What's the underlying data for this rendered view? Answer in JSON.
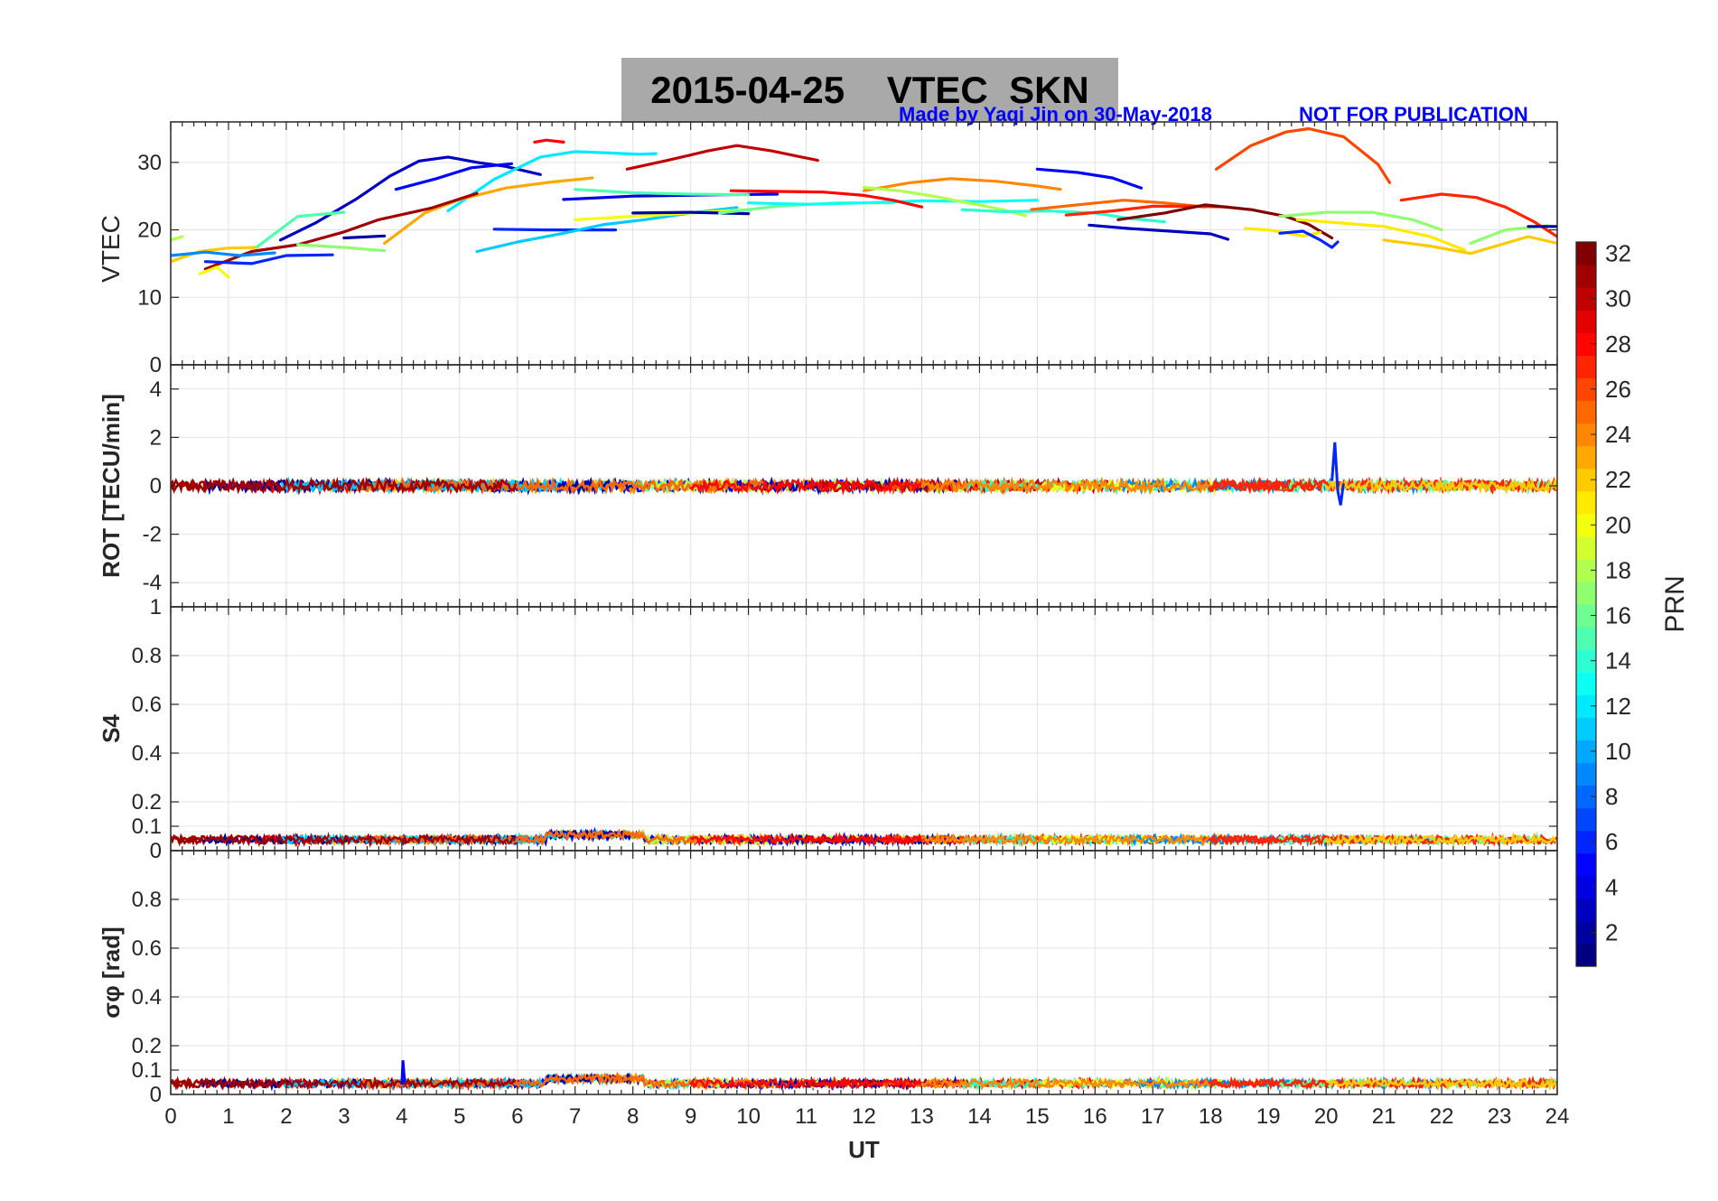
{
  "header": {
    "title": "2015-04-25    VTEC  SKN",
    "credit": "Made by Yaqi Jin on 30-May-2018",
    "notice": "NOT FOR PUBLICATION",
    "title_bg": "#a9a9a9",
    "note_color": "#0000ff"
  },
  "chart_data": [
    {
      "id": "vtec",
      "type": "line",
      "ylabel": "VTEC",
      "ylim": [
        0,
        36
      ],
      "yticks": [
        0,
        10,
        20,
        30
      ],
      "ytick_labels": [
        "0",
        "10",
        "20",
        "30"
      ],
      "grid": true,
      "series": [
        {
          "prn": 3,
          "points": [
            [
              1.9,
              18.5
            ],
            [
              2.5,
              21
            ],
            [
              3.2,
              24.5
            ],
            [
              3.8,
              28
            ],
            [
              4.3,
              30.2
            ],
            [
              4.8,
              30.8
            ],
            [
              5.3,
              30
            ],
            [
              5.8,
              29.4
            ],
            [
              6.4,
              28.2
            ]
          ]
        },
        {
          "prn": 5,
          "points": [
            [
              3.9,
              26
            ],
            [
              4.6,
              27.6
            ],
            [
              5.2,
              29.2
            ],
            [
              5.9,
              29.8
            ]
          ]
        },
        {
          "prn": 12,
          "points": [
            [
              4.8,
              22.8
            ],
            [
              5.6,
              27.5
            ],
            [
              6.4,
              30.8
            ],
            [
              7,
              31.6
            ],
            [
              7.6,
              31.4
            ],
            [
              8.1,
              31.2
            ],
            [
              8.4,
              31.3
            ]
          ]
        },
        {
          "prn": 23,
          "points": [
            [
              3.7,
              18
            ],
            [
              4.4,
              22.5
            ],
            [
              5,
              24.5
            ],
            [
              5.8,
              26.2
            ],
            [
              6.6,
              27.1
            ],
            [
              7.3,
              27.7
            ]
          ]
        },
        {
          "prn": 31,
          "points": [
            [
              0.6,
              14.2
            ],
            [
              1.4,
              16.8
            ],
            [
              2.2,
              17.8
            ],
            [
              3,
              19.7
            ],
            [
              3.6,
              21.5
            ],
            [
              4.5,
              23.2
            ],
            [
              5.3,
              25.4
            ]
          ]
        },
        {
          "prn": 28,
          "points": [
            [
              6.3,
              33
            ],
            [
              6.5,
              33.3
            ],
            [
              6.8,
              33
            ]
          ]
        },
        {
          "prn": 30,
          "points": [
            [
              7.9,
              29
            ],
            [
              8.6,
              30.3
            ],
            [
              9.3,
              31.7
            ],
            [
              9.8,
              32.5
            ],
            [
              10.4,
              31.7
            ],
            [
              11.2,
              30.3
            ]
          ]
        },
        {
          "prn": 6,
          "points": [
            [
              5.6,
              20.1
            ],
            [
              6.5,
              20
            ],
            [
              7.2,
              20
            ],
            [
              7.7,
              20
            ]
          ]
        },
        {
          "prn": 11,
          "points": [
            [
              5.3,
              16.8
            ],
            [
              6,
              18.2
            ],
            [
              6.8,
              19.5
            ],
            [
              7.5,
              20.8
            ],
            [
              8.2,
              21.5
            ],
            [
              9,
              22.5
            ],
            [
              9.8,
              23.3
            ]
          ]
        },
        {
          "prn": 4,
          "points": [
            [
              6.8,
              24.5
            ],
            [
              8,
              25
            ],
            [
              9.5,
              25.2
            ],
            [
              10.5,
              25.3
            ]
          ]
        },
        {
          "prn": 20,
          "points": [
            [
              7,
              21.5
            ],
            [
              8,
              22
            ],
            [
              9,
              22.5
            ],
            [
              10,
              23
            ]
          ]
        },
        {
          "prn": 15,
          "points": [
            [
              7,
              26
            ],
            [
              8,
              25.5
            ],
            [
              9,
              25.3
            ],
            [
              10,
              25.2
            ]
          ]
        },
        {
          "prn": 2,
          "points": [
            [
              8,
              22.5
            ],
            [
              9,
              22.6
            ],
            [
              10,
              22.4
            ]
          ]
        },
        {
          "prn": 16,
          "points": [
            [
              9.5,
              22.5
            ],
            [
              10.5,
              23.5
            ],
            [
              11.5,
              24
            ],
            [
              12.5,
              24
            ]
          ]
        },
        {
          "prn": 13,
          "points": [
            [
              10,
              24
            ],
            [
              11,
              23.8
            ],
            [
              12,
              24
            ],
            [
              13,
              24.3
            ],
            [
              14,
              24.2
            ],
            [
              15,
              24.4
            ]
          ]
        },
        {
          "prn": 28,
          "points": [
            [
              9.7,
              25.8
            ],
            [
              10.5,
              25.7
            ],
            [
              11.3,
              25.6
            ],
            [
              12,
              25.1
            ],
            [
              12.5,
              24.4
            ],
            [
              13,
              23.4
            ]
          ]
        },
        {
          "prn": 24,
          "points": [
            [
              12,
              25.8
            ],
            [
              12.8,
              27
            ],
            [
              13.5,
              27.6
            ],
            [
              14.3,
              27.2
            ],
            [
              15,
              26.5
            ],
            [
              15.4,
              26
            ]
          ]
        },
        {
          "prn": 18,
          "points": [
            [
              12,
              26.3
            ],
            [
              12.6,
              25.8
            ],
            [
              13.2,
              25
            ],
            [
              13.8,
              24
            ],
            [
              14.4,
              23
            ],
            [
              14.8,
              22.1
            ]
          ]
        },
        {
          "prn": 14,
          "points": [
            [
              13.7,
              23
            ],
            [
              14.4,
              22.7
            ],
            [
              15.2,
              22.8
            ],
            [
              16,
              22.5
            ],
            [
              16.6,
              21.7
            ],
            [
              17.2,
              21.2
            ]
          ]
        },
        {
          "prn": 5,
          "points": [
            [
              15,
              29
            ],
            [
              15.7,
              28.5
            ],
            [
              16.3,
              27.7
            ],
            [
              16.8,
              26.2
            ]
          ]
        },
        {
          "prn": 25,
          "points": [
            [
              14.9,
              23
            ],
            [
              15.8,
              23.8
            ],
            [
              16.5,
              24.4
            ],
            [
              17.2,
              24
            ],
            [
              17.9,
              23.4
            ]
          ]
        },
        {
          "prn": 27,
          "points": [
            [
              15.5,
              22.2
            ],
            [
              16.3,
              22.8
            ],
            [
              17,
              23.5
            ],
            [
              17.7,
              23.5
            ],
            [
              18.3,
              23.4
            ]
          ]
        },
        {
          "prn": 32,
          "points": [
            [
              16.4,
              21.5
            ],
            [
              17.2,
              22.5
            ],
            [
              17.9,
              23.7
            ],
            [
              18.7,
              23
            ],
            [
              19.3,
              22
            ],
            [
              19.7,
              20.8
            ],
            [
              20.1,
              18.8
            ]
          ]
        },
        {
          "prn": 3,
          "points": [
            [
              15.9,
              20.7
            ],
            [
              16.6,
              20.2
            ],
            [
              17.3,
              19.8
            ],
            [
              18,
              19.4
            ],
            [
              18.3,
              18.6
            ]
          ]
        },
        {
          "prn": 26,
          "points": [
            [
              18.1,
              29
            ],
            [
              18.7,
              32.5
            ],
            [
              19.3,
              34.5
            ],
            [
              19.7,
              35
            ],
            [
              20.3,
              33.8
            ],
            [
              20.9,
              29.7
            ],
            [
              21.1,
              27
            ]
          ]
        },
        {
          "prn": 21,
          "points": [
            [
              18.6,
              20.2
            ],
            [
              19,
              20
            ],
            [
              19.6,
              19.1
            ],
            [
              19.9,
              19.6
            ]
          ]
        },
        {
          "prn": 6,
          "points": [
            [
              19.2,
              19.5
            ],
            [
              19.6,
              19.8
            ],
            [
              19.9,
              18.5
            ],
            [
              20.1,
              17.4
            ],
            [
              20.2,
              18.2
            ]
          ]
        },
        {
          "prn": 17,
          "points": [
            [
              19.2,
              22
            ],
            [
              20,
              22.6
            ],
            [
              20.8,
              22.6
            ],
            [
              21.5,
              21.5
            ],
            [
              22,
              20
            ]
          ]
        },
        {
          "prn": 21,
          "points": [
            [
              19.5,
              21.5
            ],
            [
              20.3,
              21
            ],
            [
              21,
              20.5
            ],
            [
              21.8,
              19
            ],
            [
              22.4,
              17
            ]
          ]
        },
        {
          "prn": 27,
          "points": [
            [
              21.3,
              24.4
            ],
            [
              22,
              25.3
            ],
            [
              22.6,
              24.8
            ],
            [
              23.1,
              23.4
            ],
            [
              23.6,
              21.2
            ],
            [
              24,
              19
            ]
          ]
        },
        {
          "prn": 22,
          "points": [
            [
              21,
              18.5
            ],
            [
              21.8,
              17.6
            ],
            [
              22.5,
              16.5
            ],
            [
              23.5,
              19
            ],
            [
              24,
              18
            ]
          ]
        },
        {
          "prn": 17,
          "points": [
            [
              22.5,
              18
            ],
            [
              23.1,
              20
            ],
            [
              23.8,
              20.6
            ],
            [
              24,
              20.5
            ]
          ]
        },
        {
          "prn": 2,
          "points": [
            [
              23.5,
              20.5
            ],
            [
              24,
              20.5
            ]
          ]
        },
        {
          "prn": 22,
          "points": [
            [
              0,
              15.3
            ],
            [
              0.5,
              16.8
            ],
            [
              1,
              17.3
            ],
            [
              1.5,
              17.4
            ]
          ]
        },
        {
          "prn": 9,
          "points": [
            [
              0,
              16.2
            ],
            [
              0.6,
              16.7
            ],
            [
              1.2,
              16.2
            ],
            [
              1.8,
              16.6
            ]
          ]
        },
        {
          "prn": 20,
          "points": [
            [
              0.5,
              13.5
            ],
            [
              0.8,
              14.5
            ],
            [
              1,
              13
            ]
          ]
        },
        {
          "prn": 6,
          "points": [
            [
              0.6,
              15.3
            ],
            [
              1.4,
              15
            ],
            [
              2,
              16.2
            ],
            [
              2.8,
              16.3
            ]
          ]
        },
        {
          "prn": 15,
          "points": [
            [
              1.5,
              17.5
            ],
            [
              2.2,
              22
            ],
            [
              2.6,
              22.3
            ],
            [
              3,
              22.6
            ]
          ]
        },
        {
          "prn": 17,
          "points": [
            [
              2.2,
              17.8
            ],
            [
              3,
              17.4
            ],
            [
              3.7,
              16.9
            ]
          ]
        },
        {
          "prn": 2,
          "points": [
            [
              3,
              18.8
            ],
            [
              3.7,
              19.1
            ]
          ]
        },
        {
          "prn": 18,
          "points": [
            [
              0,
              18.5
            ],
            [
              0.2,
              19
            ]
          ]
        }
      ]
    },
    {
      "id": "rot",
      "type": "line",
      "ylabel": "ROT [TECU/min]",
      "ylim": [
        -5,
        5
      ],
      "yticks": [
        -4,
        -2,
        0,
        2,
        4
      ],
      "ytick_labels": [
        "-4",
        "-2",
        "0",
        "2",
        "4"
      ],
      "grid": true,
      "series": [
        {
          "prn": 6,
          "points": [
            [
              20.1,
              0.2
            ],
            [
              20.15,
              1.8
            ],
            [
              20.2,
              -0.2
            ],
            [
              20.25,
              -0.8
            ],
            [
              20.3,
              0.1
            ]
          ]
        }
      ]
    },
    {
      "id": "s4",
      "type": "line",
      "ylabel": "S4",
      "ylim": [
        0,
        1
      ],
      "yticks": [
        0,
        0.1,
        0.2,
        0.4,
        0.6,
        0.8,
        1
      ],
      "ytick_labels": [
        "0",
        "0.1",
        "0.2",
        "0.4",
        "0.6",
        "0.8",
        "1"
      ],
      "grid": true,
      "series": []
    },
    {
      "id": "sigphi",
      "type": "line",
      "ylabel": "σφ [rad]",
      "ylim": [
        0,
        1
      ],
      "yticks": [
        0,
        0.1,
        0.2,
        0.4,
        0.6,
        0.8
      ],
      "ytick_labels": [
        "0",
        "0.1",
        "0.2",
        "0.4",
        "0.6",
        "0.8"
      ],
      "xlabel": "UT",
      "xlim": [
        0,
        24
      ],
      "xticks": [
        0,
        1,
        2,
        3,
        4,
        5,
        6,
        7,
        8,
        9,
        10,
        11,
        12,
        13,
        14,
        15,
        16,
        17,
        18,
        19,
        20,
        21,
        22,
        23,
        24
      ],
      "xtick_labels": [
        "0",
        "1",
        "2",
        "3",
        "4",
        "5",
        "6",
        "7",
        "8",
        "9",
        "10",
        "11",
        "12",
        "13",
        "14",
        "15",
        "16",
        "17",
        "18",
        "19",
        "20",
        "21",
        "22",
        "23",
        "24"
      ],
      "grid": true,
      "series": [
        {
          "prn": 5,
          "points": [
            [
              4,
              0.04
            ],
            [
              4.02,
              0.14
            ],
            [
              4.05,
              0.05
            ]
          ]
        }
      ]
    }
  ],
  "colorbar": {
    "label": "PRN",
    "range": [
      1,
      32
    ],
    "ticks": [
      2,
      4,
      6,
      8,
      10,
      12,
      14,
      16,
      18,
      20,
      22,
      24,
      26,
      28,
      30,
      32
    ],
    "tick_labels": [
      "2",
      "4",
      "6",
      "8",
      "10",
      "12",
      "14",
      "16",
      "18",
      "20",
      "22",
      "24",
      "26",
      "28",
      "30",
      "32"
    ],
    "colormap": "jet"
  }
}
